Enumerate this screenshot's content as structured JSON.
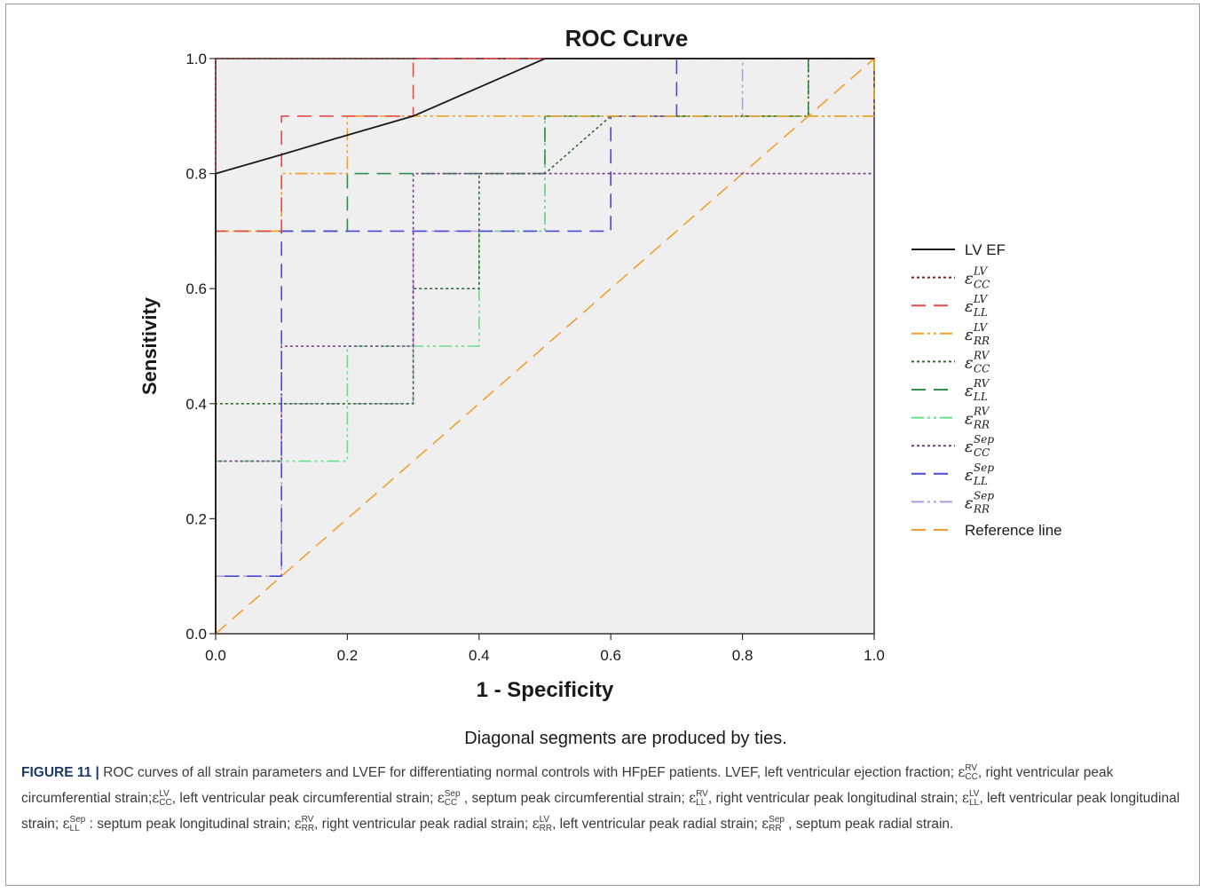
{
  "chart_data": {
    "type": "line",
    "title": "ROC Curve",
    "xlabel": "1 - Specificity",
    "ylabel": "Sensitivity",
    "xlim": [
      0,
      1
    ],
    "ylim": [
      0,
      1
    ],
    "xticks": [
      "0.0",
      "0.2",
      "0.4",
      "0.6",
      "0.8",
      "1.0"
    ],
    "yticks": [
      "0.0",
      "0.2",
      "0.4",
      "0.6",
      "0.8",
      "1.0"
    ],
    "grid": false,
    "legend_position": "right",
    "note": "Diagonal segments are produced by ties.",
    "series": [
      {
        "key": "lvef",
        "label": "LV EF",
        "color": "#1a1a1a",
        "dash": "",
        "points": [
          [
            0,
            0
          ],
          [
            0,
            0.8
          ],
          [
            0.1,
            0.833
          ],
          [
            0.2,
            0.867
          ],
          [
            0.3,
            0.9
          ],
          [
            0.4,
            0.95
          ],
          [
            0.5,
            1.0
          ],
          [
            1,
            1
          ]
        ]
      },
      {
        "key": "cc_lv",
        "label_base": "ε",
        "sub": "CC",
        "sup": "LV",
        "color": "#8b1a1a",
        "dash": "3,3",
        "points": [
          [
            0,
            0
          ],
          [
            0,
            1
          ],
          [
            1,
            1
          ]
        ]
      },
      {
        "key": "ll_lv",
        "label_base": "ε",
        "sub": "LL",
        "sup": "LV",
        "color": "#e84a4a",
        "dash": "16,9",
        "points": [
          [
            0,
            0
          ],
          [
            0,
            0.7
          ],
          [
            0.1,
            0.7
          ],
          [
            0.1,
            0.9
          ],
          [
            0.3,
            0.9
          ],
          [
            0.3,
            1
          ],
          [
            1,
            1
          ]
        ]
      },
      {
        "key": "rr_lv",
        "label_base": "ε",
        "sub": "RR",
        "sup": "LV",
        "color": "#f0a020",
        "dash": "14,4,3,4,3,4",
        "points": [
          [
            0,
            0
          ],
          [
            0,
            0.7
          ],
          [
            0.1,
            0.7
          ],
          [
            0.1,
            0.8
          ],
          [
            0.2,
            0.8
          ],
          [
            0.2,
            0.9
          ],
          [
            0.6,
            0.9
          ],
          [
            1,
            0.9
          ],
          [
            1,
            1
          ]
        ]
      },
      {
        "key": "cc_rv",
        "label_base": "ε",
        "sub": "CC",
        "sup": "RV",
        "color": "#2e6b2e",
        "dash": "3,3",
        "points": [
          [
            0,
            0
          ],
          [
            0,
            0.4
          ],
          [
            0.1,
            0.4
          ],
          [
            0.2,
            0.4
          ],
          [
            0.3,
            0.4
          ],
          [
            0.3,
            0.6
          ],
          [
            0.4,
            0.6
          ],
          [
            0.4,
            0.7
          ],
          [
            0.4,
            0.8
          ],
          [
            0.5,
            0.8
          ],
          [
            0.6,
            0.9
          ],
          [
            0.9,
            0.9
          ],
          [
            0.9,
            1
          ],
          [
            1,
            1
          ]
        ]
      },
      {
        "key": "ll_rv",
        "label_base": "ε",
        "sub": "LL",
        "sup": "RV",
        "color": "#2f8f4f",
        "dash": "16,9",
        "points": [
          [
            0,
            0
          ],
          [
            0,
            0.7
          ],
          [
            0.1,
            0.7
          ],
          [
            0.2,
            0.7
          ],
          [
            0.2,
            0.8
          ],
          [
            0.5,
            0.8
          ],
          [
            0.5,
            0.9
          ],
          [
            0.9,
            0.9
          ],
          [
            0.9,
            1
          ],
          [
            1,
            1
          ]
        ]
      },
      {
        "key": "rr_rv",
        "label_base": "ε",
        "sub": "RR",
        "sup": "RV",
        "color": "#66dd88",
        "dash": "14,4,3,4,3,4",
        "points": [
          [
            0,
            0
          ],
          [
            0,
            0.3
          ],
          [
            0.1,
            0.3
          ],
          [
            0.2,
            0.3
          ],
          [
            0.2,
            0.5
          ],
          [
            0.3,
            0.5
          ],
          [
            0.4,
            0.5
          ],
          [
            0.4,
            0.7
          ],
          [
            0.5,
            0.7
          ],
          [
            0.5,
            0.9
          ],
          [
            0.9,
            0.9
          ],
          [
            1,
            0.9
          ],
          [
            1,
            1
          ]
        ]
      },
      {
        "key": "cc_sep",
        "label_base": "ε",
        "sub": "CC",
        "sup": "Sep",
        "color": "#7a3a8a",
        "dash": "3,3",
        "points": [
          [
            0,
            0
          ],
          [
            0,
            0.3
          ],
          [
            0.1,
            0.3
          ],
          [
            0.1,
            0.5
          ],
          [
            0.3,
            0.5
          ],
          [
            0.3,
            0.8
          ],
          [
            0.5,
            0.8
          ],
          [
            1,
            0.8
          ],
          [
            1,
            1
          ]
        ]
      },
      {
        "key": "ll_sep",
        "label_base": "ε",
        "sub": "LL",
        "sup": "Sep",
        "color": "#4a4ad8",
        "dash": "16,9",
        "points": [
          [
            0,
            0
          ],
          [
            0,
            0.1
          ],
          [
            0.1,
            0.1
          ],
          [
            0.1,
            0.7
          ],
          [
            0.6,
            0.7
          ],
          [
            0.6,
            0.9
          ],
          [
            0.7,
            0.9
          ],
          [
            0.7,
            1
          ],
          [
            1,
            1
          ]
        ]
      },
      {
        "key": "rr_sep",
        "label_base": "ε",
        "sub": "RR",
        "sup": "Sep",
        "color": "#b89ad8",
        "dash": "14,4,3,4,3,4",
        "points": [
          [
            0,
            0
          ],
          [
            0,
            0.1
          ],
          [
            0.1,
            0.1
          ],
          [
            0.1,
            0.4
          ],
          [
            0.3,
            0.4
          ],
          [
            0.3,
            0.7
          ],
          [
            0.5,
            0.7
          ],
          [
            0.5,
            0.9
          ],
          [
            0.8,
            0.9
          ],
          [
            0.8,
            1
          ],
          [
            1,
            1
          ]
        ]
      },
      {
        "key": "ref",
        "label": "Reference line",
        "color": "#f0a030",
        "dash": "16,9",
        "points": [
          [
            0,
            0
          ],
          [
            1,
            1
          ]
        ]
      }
    ]
  },
  "caption": {
    "figure_label": "FIGURE 11 |",
    "parts": [
      {
        "t": " ROC curves of all strain parameters and LVEF for differentiating normal controls with HFpEF patients. LVEF, left ventricular ejection fraction; "
      },
      {
        "e": true,
        "sub": "CC",
        "sup": "RV"
      },
      {
        "t": ", right ventricular peak circumferential strain;"
      },
      {
        "e": true,
        "sub": "CC",
        "sup": "LV"
      },
      {
        "t": ", left ventricular peak circumferential strain; "
      },
      {
        "e": true,
        "sub": "CC",
        "sup": "Sep"
      },
      {
        "t": " , septum peak circumferential strain; "
      },
      {
        "e": true,
        "sub": "LL",
        "sup": "RV"
      },
      {
        "t": ", right ventricular peak longitudinal strain; "
      },
      {
        "e": true,
        "sub": "LL",
        "sup": "LV"
      },
      {
        "t": ", left ventricular peak longitudinal strain; "
      },
      {
        "e": true,
        "sub": "LL",
        "sup": "Sep"
      },
      {
        "t": " : septum peak longitudinal strain; "
      },
      {
        "e": true,
        "sub": "RR",
        "sup": "RV"
      },
      {
        "t": ", right ventricular peak radial strain; "
      },
      {
        "e": true,
        "sub": "RR",
        "sup": "LV"
      },
      {
        "t": ", left ventricular peak radial strain; "
      },
      {
        "e": true,
        "sub": "RR",
        "sup": "Sep"
      },
      {
        "t": " , septum peak radial strain."
      }
    ]
  }
}
